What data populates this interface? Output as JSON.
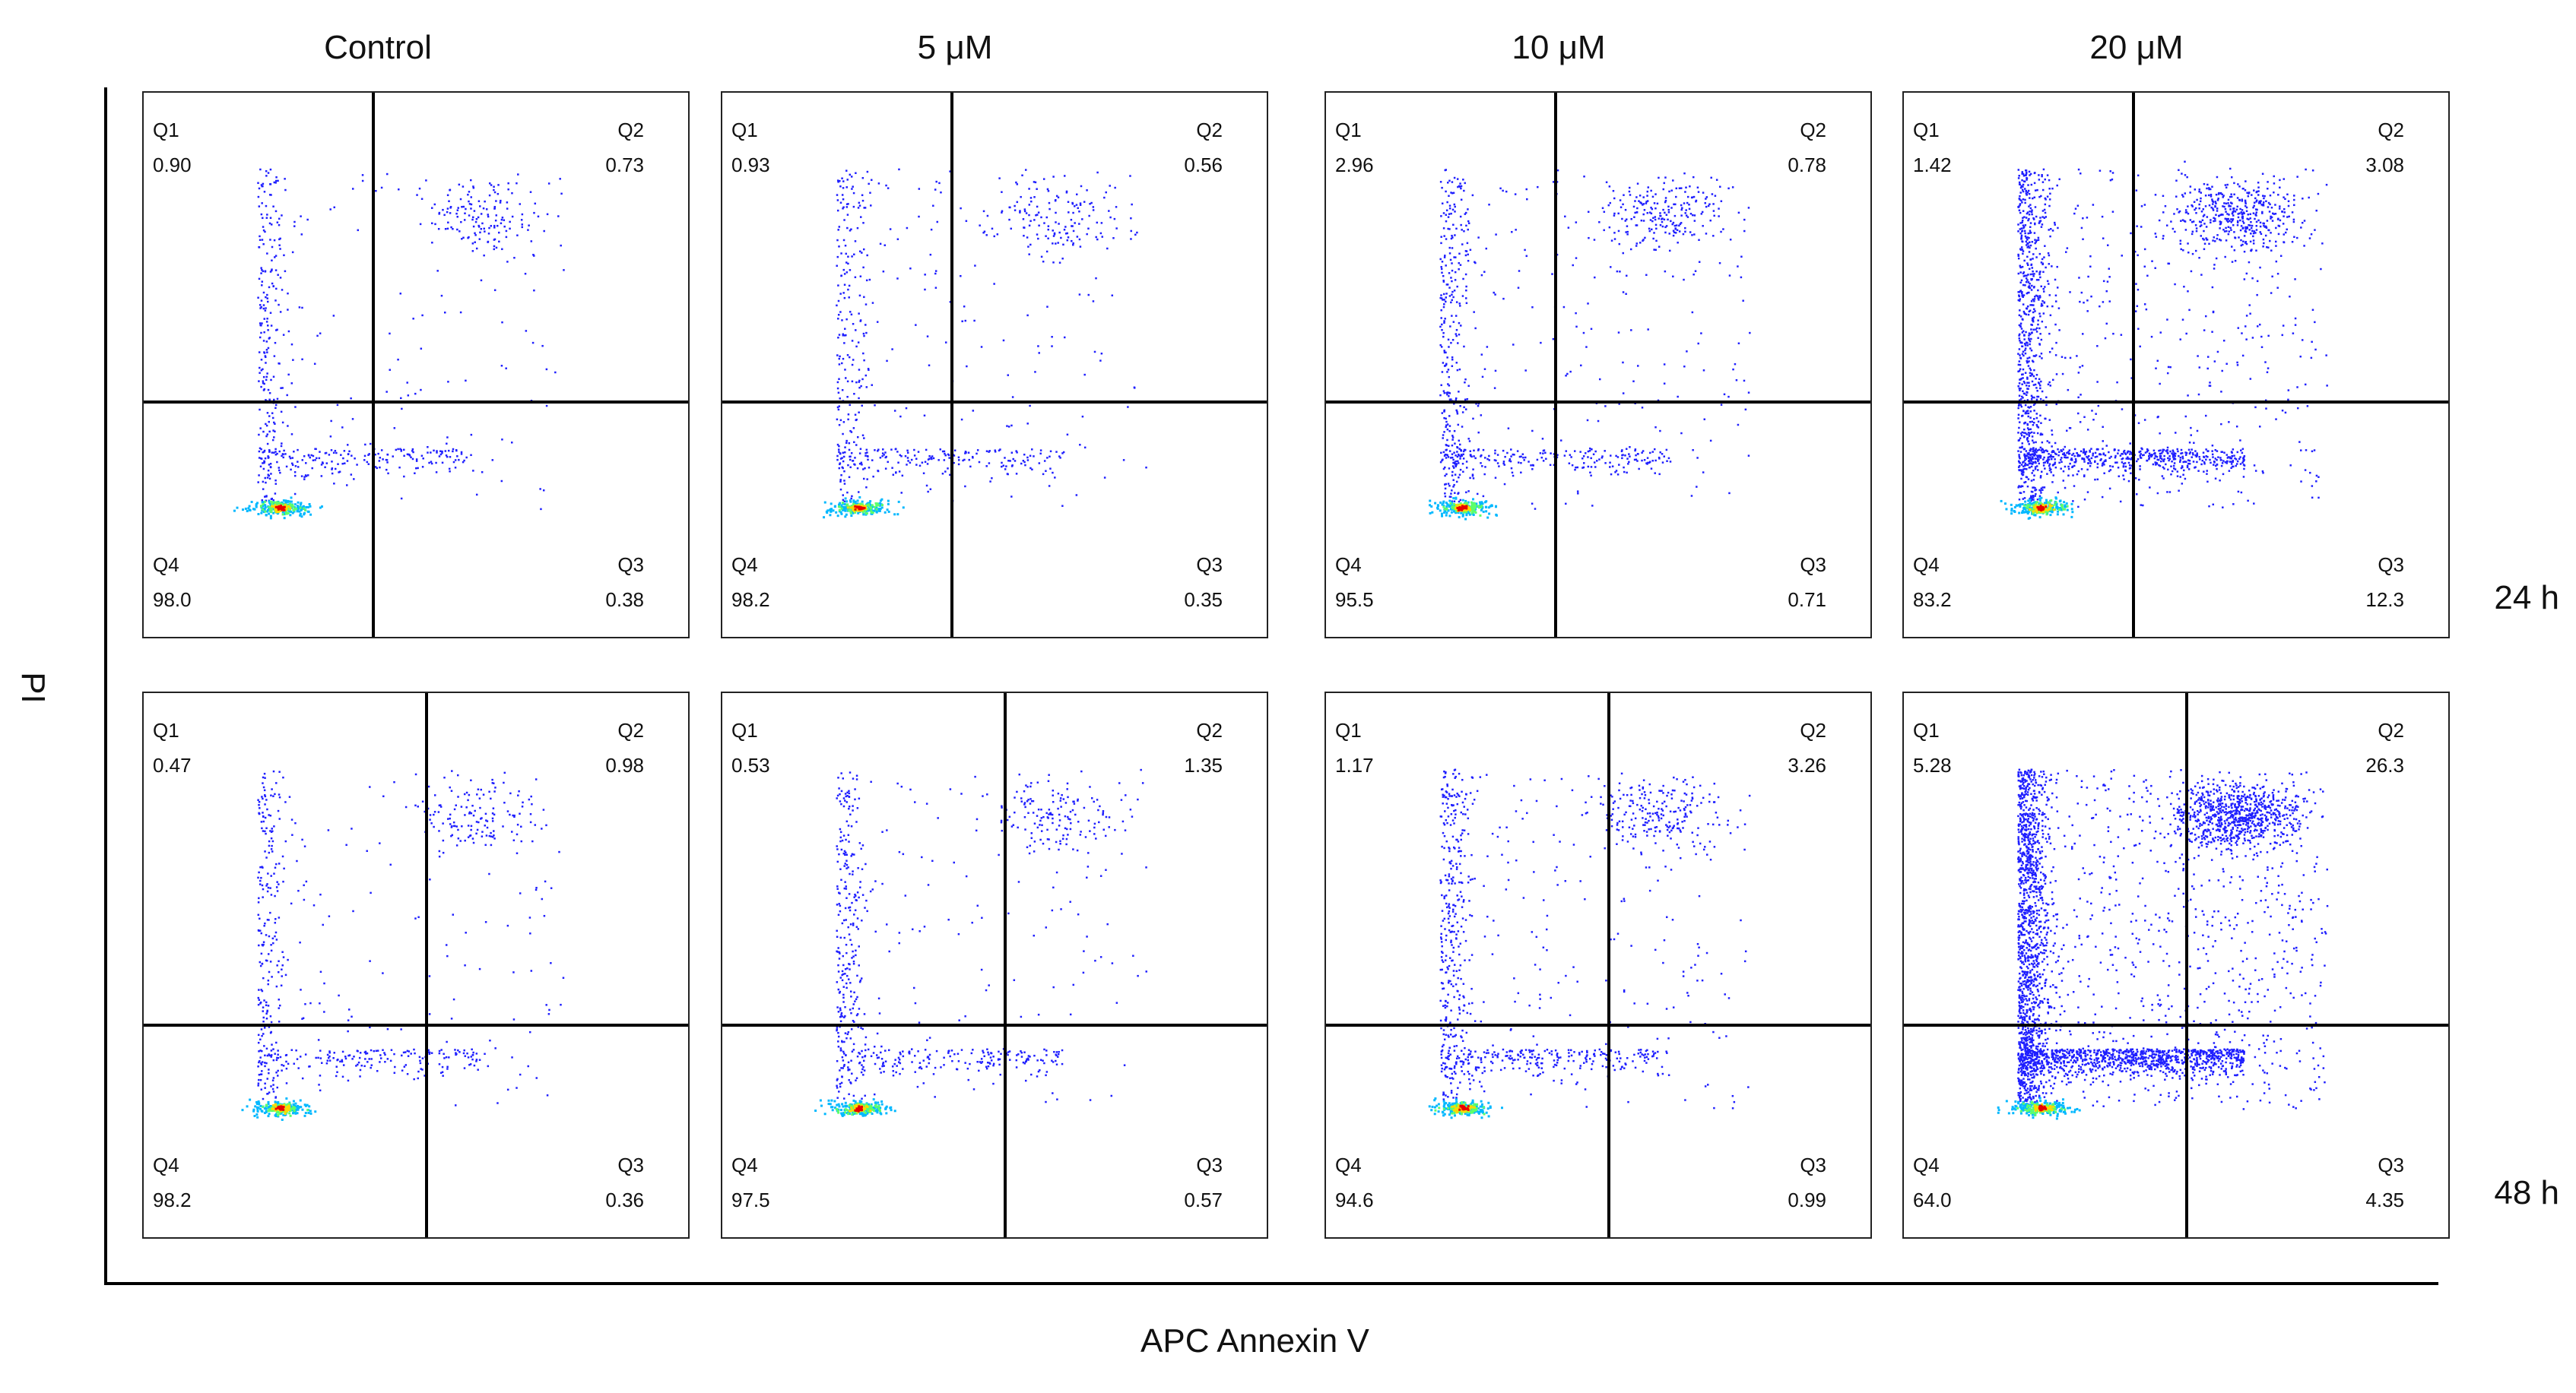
{
  "chart_data": {
    "type": "scatter",
    "xlabel": "APC Annexin V",
    "ylabel": "PI",
    "columns": [
      "Control",
      "5 μM",
      "10 μM",
      "20 μM"
    ],
    "rows": [
      "24 h",
      "48 h"
    ],
    "colors": {
      "low": "#1f1fff",
      "mid": "#00b8ff",
      "high": "#ffd800",
      "peak": "#e80000"
    },
    "panels": [
      {
        "row": "24 h",
        "column": "Control",
        "Q1": "0.90",
        "Q2": "0.73",
        "Q3": "0.38",
        "Q4": "98.0"
      },
      {
        "row": "24 h",
        "column": "5 μM",
        "Q1": "0.93",
        "Q2": "0.56",
        "Q3": "0.35",
        "Q4": "98.2"
      },
      {
        "row": "24 h",
        "column": "10 μM",
        "Q1": "2.96",
        "Q2": "0.78",
        "Q3": "0.71",
        "Q4": "95.5"
      },
      {
        "row": "24 h",
        "column": "20 μM",
        "Q1": "1.42",
        "Q2": "3.08",
        "Q3": "12.3",
        "Q4": "83.2"
      },
      {
        "row": "48 h",
        "column": "Control",
        "Q1": "0.47",
        "Q2": "0.98",
        "Q3": "0.36",
        "Q4": "98.2"
      },
      {
        "row": "48 h",
        "column": "5 μM",
        "Q1": "0.53",
        "Q2": "1.35",
        "Q3": "0.57",
        "Q4": "97.5"
      },
      {
        "row": "48 h",
        "column": "10 μM",
        "Q1": "1.17",
        "Q2": "3.26",
        "Q3": "0.99",
        "Q4": "94.6"
      },
      {
        "row": "48 h",
        "column": "20 μM",
        "Q1": "5.28",
        "Q2": "26.3",
        "Q3": "4.35",
        "Q4": "64.0"
      }
    ]
  }
}
